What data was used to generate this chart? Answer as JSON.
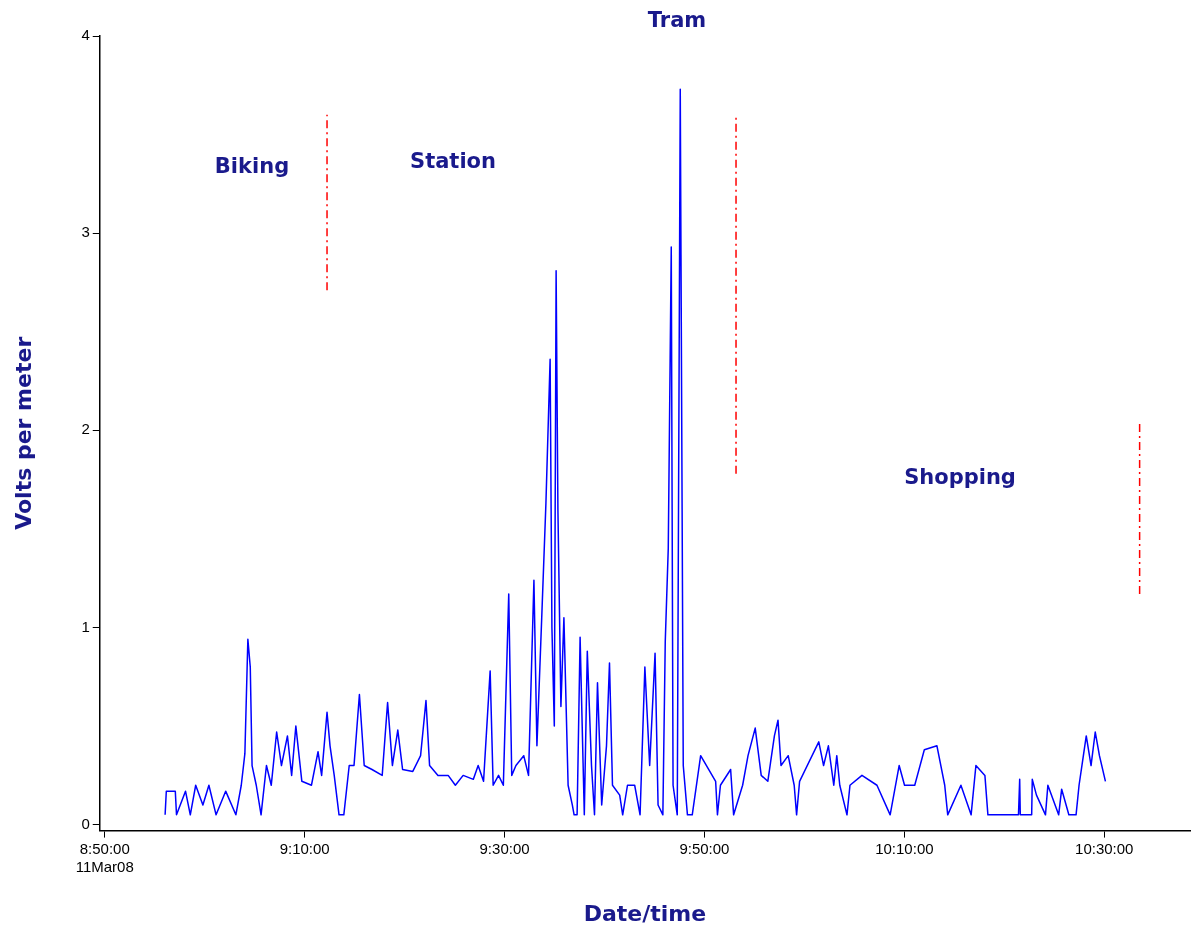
{
  "chart_data": {
    "type": "line",
    "xlabel": "Date/time",
    "ylabel": "Volts per meter",
    "xlim": [
      8.825,
      10.643
    ],
    "ylim": [
      -0.03,
      4
    ],
    "xticks": [
      {
        "value": 8.8333,
        "label": "8:50:00\n11Mar08"
      },
      {
        "value": 9.1667,
        "label": "9:10:00"
      },
      {
        "value": 9.5,
        "label": "9:30:00"
      },
      {
        "value": 9.8333,
        "label": "9:50:00"
      },
      {
        "value": 10.1667,
        "label": "10:10:00"
      },
      {
        "value": 10.5,
        "label": "10:30:00"
      }
    ],
    "yticks": [
      0,
      1,
      2,
      3,
      4
    ],
    "grid": false,
    "legend": false,
    "marker": "none",
    "series": [
      {
        "color": "#0000ff",
        "line_style": "solid",
        "x": [
          8.934,
          8.936,
          8.951,
          8.953,
          8.968,
          8.976,
          8.985,
          8.997,
          9.007,
          9.019,
          9.035,
          9.052,
          9.061,
          9.067,
          9.072,
          9.076,
          9.079,
          9.086,
          9.094,
          9.103,
          9.111,
          9.12,
          9.128,
          9.138,
          9.145,
          9.152,
          9.162,
          9.178,
          9.189,
          9.195,
          9.204,
          9.209,
          9.216,
          9.224,
          9.232,
          9.241,
          9.249,
          9.258,
          9.266,
          9.279,
          9.296,
          9.305,
          9.313,
          9.322,
          9.33,
          9.347,
          9.36,
          9.369,
          9.375,
          9.389,
          9.406,
          9.418,
          9.431,
          9.448,
          9.456,
          9.465,
          9.476,
          9.481,
          9.49,
          9.498,
          9.507,
          9.512,
          9.519,
          9.532,
          9.54,
          9.549,
          9.554,
          9.562,
          9.569,
          9.576,
          9.579,
          9.583,
          9.586,
          9.589,
          9.594,
          9.599,
          9.606,
          9.613,
          9.616,
          9.621,
          9.626,
          9.633,
          9.638,
          9.645,
          9.65,
          9.655,
          9.662,
          9.67,
          9.675,
          9.68,
          9.692,
          9.697,
          9.705,
          9.717,
          9.726,
          9.734,
          9.742,
          9.751,
          9.756,
          9.764,
          9.768,
          9.773,
          9.778,
          9.781,
          9.788,
          9.793,
          9.798,
          9.805,
          9.813,
          9.827,
          9.852,
          9.855,
          9.86,
          9.877,
          9.882,
          9.897,
          9.906,
          9.918,
          9.928,
          9.939,
          9.95,
          9.956,
          9.961,
          9.973,
          9.983,
          9.987,
          9.992,
          10.024,
          10.032,
          10.04,
          10.049,
          10.054,
          10.059,
          10.071,
          10.076,
          10.096,
          10.121,
          10.143,
          10.158,
          10.167,
          10.184,
          10.2,
          10.221,
          10.234,
          10.239,
          10.261,
          10.278,
          10.286,
          10.301,
          10.306,
          10.357,
          10.359,
          10.36,
          10.379,
          10.38,
          10.387,
          10.402,
          10.406,
          10.424,
          10.429,
          10.441,
          10.453,
          10.458,
          10.47,
          10.478,
          10.485,
          10.492,
          10.502
        ],
        "values": [
          0.05,
          0.17,
          0.17,
          0.05,
          0.17,
          0.05,
          0.2,
          0.1,
          0.2,
          0.05,
          0.17,
          0.05,
          0.2,
          0.36,
          0.94,
          0.8,
          0.3,
          0.2,
          0.05,
          0.3,
          0.2,
          0.47,
          0.3,
          0.45,
          0.25,
          0.5,
          0.22,
          0.2,
          0.37,
          0.25,
          0.57,
          0.4,
          0.25,
          0.05,
          0.05,
          0.3,
          0.3,
          0.66,
          0.3,
          0.28,
          0.25,
          0.62,
          0.3,
          0.48,
          0.28,
          0.27,
          0.35,
          0.63,
          0.3,
          0.25,
          0.25,
          0.2,
          0.25,
          0.23,
          0.3,
          0.22,
          0.78,
          0.2,
          0.25,
          0.2,
          1.17,
          0.25,
          0.3,
          0.35,
          0.25,
          1.24,
          0.4,
          1.05,
          1.63,
          2.36,
          1.0,
          0.5,
          2.81,
          1.6,
          0.6,
          1.05,
          0.2,
          0.1,
          0.05,
          0.05,
          0.95,
          0.05,
          0.88,
          0.3,
          0.05,
          0.72,
          0.1,
          0.4,
          0.82,
          0.2,
          0.15,
          0.05,
          0.2,
          0.2,
          0.05,
          0.8,
          0.3,
          0.87,
          0.1,
          0.05,
          0.93,
          1.4,
          2.93,
          0.2,
          0.05,
          3.73,
          0.3,
          0.05,
          0.05,
          0.35,
          0.22,
          0.05,
          0.2,
          0.28,
          0.05,
          0.2,
          0.35,
          0.49,
          0.25,
          0.22,
          0.45,
          0.53,
          0.3,
          0.35,
          0.2,
          0.05,
          0.22,
          0.42,
          0.3,
          0.4,
          0.2,
          0.35,
          0.2,
          0.05,
          0.2,
          0.25,
          0.2,
          0.05,
          0.3,
          0.2,
          0.2,
          0.38,
          0.4,
          0.2,
          0.05,
          0.2,
          0.05,
          0.3,
          0.25,
          0.05,
          0.05,
          0.23,
          0.05,
          0.05,
          0.23,
          0.15,
          0.05,
          0.2,
          0.05,
          0.18,
          0.05,
          0.05,
          0.2,
          0.45,
          0.3,
          0.47,
          0.35,
          0.22
        ]
      },
      {
        "color": "#ff0000",
        "line_style": "dashed",
        "x": [
          9.204,
          9.204
        ],
        "values": [
          2.71,
          3.6
        ]
      },
      {
        "color": "#ff0000",
        "line_style": "dashed",
        "x": [
          9.886,
          9.886
        ],
        "values": [
          1.78,
          3.6
        ]
      },
      {
        "color": "#ff0000",
        "line_style": "dashed",
        "x": [
          10.559,
          10.559
        ],
        "values": [
          1.17,
          2.05
        ]
      }
    ],
    "annotations": [
      "Biking",
      "Station",
      "Tram",
      "Shopping"
    ]
  }
}
